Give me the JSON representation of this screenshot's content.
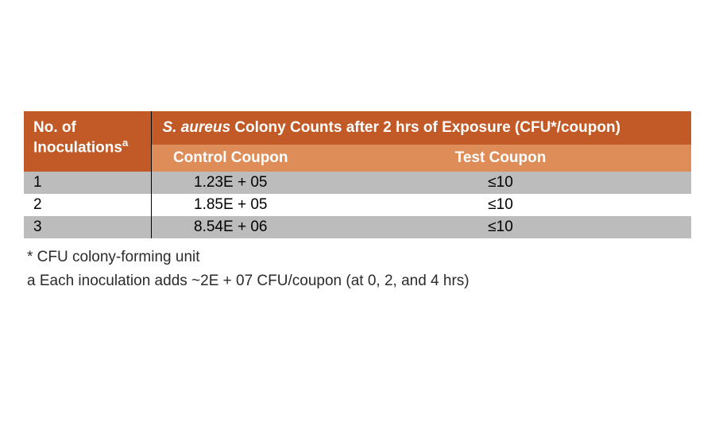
{
  "table": {
    "header": {
      "inoculations_label_line1": "No. of",
      "inoculations_label_line2": "Inoculations",
      "inoculations_sup": "a",
      "colony_header_species": "S. aureus",
      "colony_header_rest": " Colony Counts after 2 hrs of Exposure (CFU*/coupon)",
      "control_label": "Control Coupon",
      "test_label": "Test Coupon"
    },
    "rows": [
      {
        "n": "1",
        "control": "1.23E + 05",
        "test": "≤10"
      },
      {
        "n": "2",
        "control": "1.85E + 05",
        "test": "≤10"
      },
      {
        "n": "3",
        "control": "8.54E + 06",
        "test": "≤10"
      }
    ]
  },
  "footnotes": {
    "cfu": "* CFU colony-forming unit",
    "inoc": "a Each inoculation adds ~2E + 07 CFU/coupon (at 0, 2, and 4 hrs)"
  },
  "colors": {
    "header_bg": "#c25a27",
    "subheader_bg": "#de8d59",
    "row_grey": "#bcbcbc",
    "row_white": "#ffffff",
    "divider": "#000000",
    "text_white": "#ffffff",
    "text_dark": "#2b2b2b"
  }
}
